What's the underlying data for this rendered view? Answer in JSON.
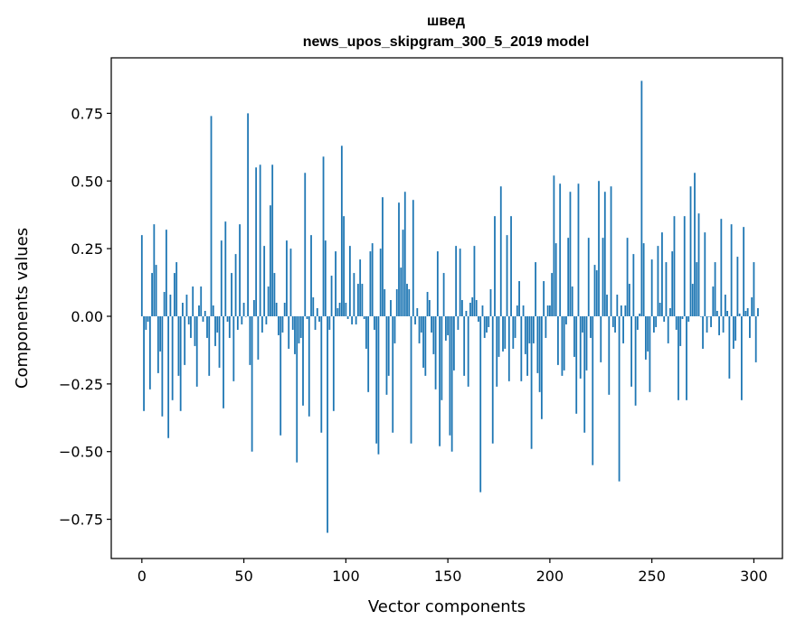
{
  "chart_data": {
    "type": "bar",
    "title_line1": "швед",
    "title_line2": "news_upos_skipgram_300_5_2019 model",
    "xlabel": "Vector components",
    "ylabel": "Components values",
    "xlim": [
      -15,
      314
    ],
    "ylim": [
      -0.895,
      0.955
    ],
    "xticks": [
      0,
      50,
      100,
      150,
      200,
      250,
      300
    ],
    "xtick_labels": [
      "0",
      "50",
      "100",
      "150",
      "200",
      "250",
      "300"
    ],
    "yticks": [
      -0.75,
      -0.5,
      -0.25,
      0.0,
      0.25,
      0.5,
      0.75
    ],
    "ytick_labels": [
      "−0.75",
      "−0.50",
      "−0.25",
      "0.00",
      "0.25",
      "0.50",
      "0.75"
    ],
    "bar_color": "#1f77b4",
    "grid": false,
    "values": [
      0.3,
      -0.35,
      -0.05,
      -0.02,
      -0.27,
      0.16,
      0.34,
      0.19,
      -0.21,
      -0.13,
      -0.37,
      0.09,
      0.32,
      -0.45,
      0.08,
      -0.31,
      0.16,
      0.2,
      -0.22,
      -0.35,
      0.05,
      -0.18,
      0.08,
      -0.03,
      -0.08,
      0.11,
      -0.11,
      -0.26,
      0.04,
      0.11,
      -0.02,
      0.02,
      -0.08,
      -0.22,
      0.74,
      0.04,
      -0.11,
      -0.06,
      -0.19,
      0.28,
      -0.34,
      0.35,
      -0.02,
      -0.08,
      0.16,
      -0.24,
      0.23,
      -0.05,
      0.34,
      -0.03,
      0.05,
      0.0,
      0.75,
      -0.18,
      -0.5,
      0.06,
      0.55,
      -0.16,
      0.56,
      -0.06,
      0.26,
      -0.03,
      0.11,
      0.41,
      0.56,
      0.16,
      0.05,
      -0.07,
      -0.44,
      -0.06,
      0.05,
      0.28,
      -0.12,
      0.25,
      -0.05,
      -0.14,
      -0.54,
      -0.1,
      -0.08,
      -0.33,
      0.53,
      -0.01,
      -0.37,
      0.3,
      0.07,
      -0.05,
      0.03,
      -0.02,
      -0.43,
      0.59,
      0.28,
      -0.8,
      -0.05,
      0.15,
      -0.35,
      0.24,
      0.03,
      0.05,
      0.63,
      0.37,
      0.05,
      -0.01,
      0.26,
      -0.03,
      0.16,
      -0.03,
      0.12,
      0.21,
      0.12,
      -0.01,
      -0.12,
      -0.28,
      0.24,
      0.27,
      -0.05,
      -0.47,
      -0.51,
      0.25,
      0.44,
      0.1,
      -0.29,
      -0.22,
      0.06,
      -0.43,
      -0.1,
      0.1,
      0.42,
      0.18,
      0.32,
      0.46,
      0.12,
      0.1,
      -0.47,
      0.43,
      -0.03,
      0.03,
      -0.1,
      -0.06,
      -0.19,
      -0.22,
      0.09,
      0.06,
      -0.06,
      -0.14,
      -0.27,
      0.24,
      -0.48,
      -0.31,
      0.16,
      -0.09,
      -0.07,
      -0.44,
      -0.5,
      -0.2,
      0.26,
      -0.05,
      0.25,
      0.06,
      -0.22,
      0.02,
      -0.26,
      0.05,
      0.07,
      0.26,
      0.06,
      -0.02,
      -0.65,
      0.04,
      -0.08,
      -0.06,
      -0.04,
      0.1,
      -0.47,
      0.37,
      -0.26,
      -0.15,
      0.48,
      -0.13,
      -0.12,
      0.3,
      -0.24,
      0.37,
      -0.12,
      -0.08,
      0.04,
      0.13,
      -0.24,
      0.04,
      -0.14,
      -0.22,
      -0.1,
      -0.49,
      -0.1,
      0.2,
      -0.21,
      -0.28,
      -0.38,
      0.13,
      -0.08,
      0.04,
      0.04,
      0.16,
      0.52,
      0.27,
      -0.18,
      0.49,
      -0.22,
      -0.2,
      -0.03,
      0.29,
      0.46,
      0.11,
      -0.15,
      -0.36,
      0.49,
      -0.23,
      -0.06,
      -0.43,
      -0.2,
      0.29,
      -0.08,
      -0.55,
      0.19,
      0.17,
      0.5,
      -0.17,
      0.29,
      0.46,
      0.08,
      -0.29,
      0.48,
      -0.04,
      -0.06,
      0.08,
      -0.61,
      0.04,
      -0.1,
      0.04,
      0.29,
      0.12,
      -0.26,
      0.23,
      -0.33,
      -0.05,
      0.01,
      0.87,
      0.27,
      -0.16,
      -0.13,
      -0.28,
      0.21,
      -0.06,
      -0.04,
      0.26,
      0.05,
      0.31,
      -0.02,
      0.2,
      -0.1,
      0.03,
      0.24,
      0.37,
      -0.05,
      -0.31,
      -0.11,
      -0.01,
      0.37,
      -0.31,
      -0.02,
      0.48,
      0.12,
      0.53,
      0.2,
      0.38,
      0.0,
      -0.12,
      0.31,
      -0.06,
      0.0,
      -0.04,
      0.11,
      0.2,
      0.02,
      -0.07,
      0.36,
      -0.06,
      0.08,
      0.02,
      -0.23,
      0.34,
      -0.12,
      -0.09,
      0.22,
      0.01,
      -0.31,
      0.33,
      0.02,
      0.03,
      -0.08,
      0.07,
      0.2,
      -0.17,
      0.03
    ]
  }
}
